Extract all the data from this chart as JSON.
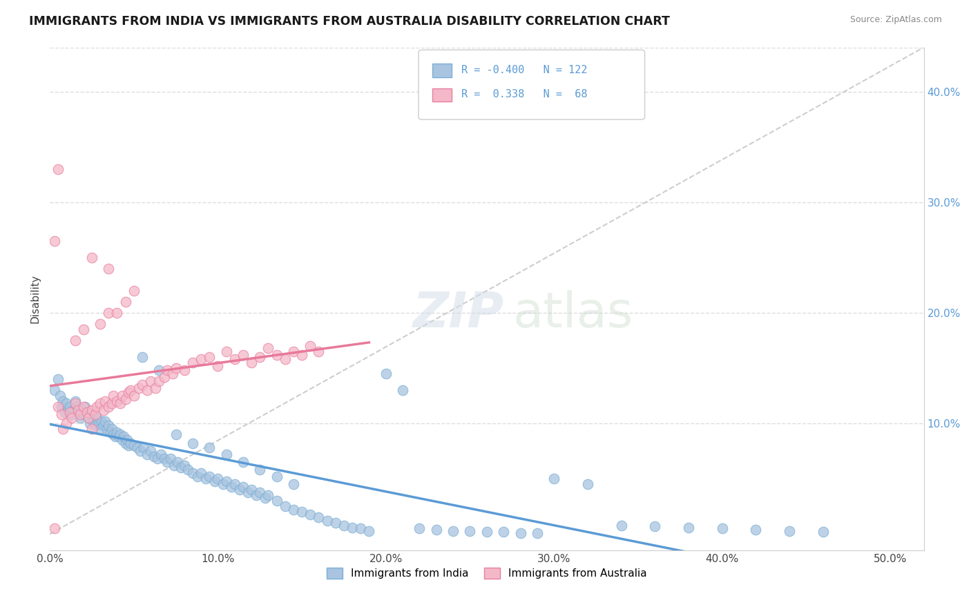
{
  "title": "IMMIGRANTS FROM INDIA VS IMMIGRANTS FROM AUSTRALIA DISABILITY CORRELATION CHART",
  "source": "Source: ZipAtlas.com",
  "ylabel": "Disability",
  "x_ticks": [
    0.0,
    0.1,
    0.2,
    0.3,
    0.4,
    0.5
  ],
  "x_tick_labels": [
    "0.0%",
    "10.0%",
    "20.0%",
    "30.0%",
    "40.0%",
    "50.0%"
  ],
  "y_ticks_right": [
    0.1,
    0.2,
    0.3,
    0.4
  ],
  "y_tick_labels_right": [
    "10.0%",
    "20.0%",
    "30.0%",
    "40.0%"
  ],
  "xlim": [
    0.0,
    0.52
  ],
  "ylim": [
    -0.015,
    0.44
  ],
  "india_color": "#a8c4e0",
  "india_color_dark": "#7bafd4",
  "australia_color": "#f4b8c8",
  "australia_color_dark": "#e87fa0",
  "trend_india_color": "#5b9bd5",
  "trend_australia_color": "#e8799a",
  "diagonal_color": "#c8c8c8",
  "legend_R_india": "-0.400",
  "legend_N_india": "122",
  "legend_R_australia": "0.338",
  "legend_N_australia": "68",
  "legend_label_india": "Immigrants from India",
  "legend_label_australia": "Immigrants from Australia",
  "india_x": [
    0.003,
    0.005,
    0.006,
    0.007,
    0.008,
    0.009,
    0.01,
    0.011,
    0.012,
    0.013,
    0.014,
    0.015,
    0.016,
    0.017,
    0.018,
    0.019,
    0.02,
    0.021,
    0.022,
    0.023,
    0.024,
    0.025,
    0.026,
    0.027,
    0.028,
    0.029,
    0.03,
    0.031,
    0.032,
    0.033,
    0.034,
    0.035,
    0.036,
    0.037,
    0.038,
    0.039,
    0.04,
    0.041,
    0.042,
    0.043,
    0.044,
    0.045,
    0.046,
    0.047,
    0.048,
    0.05,
    0.052,
    0.054,
    0.056,
    0.058,
    0.06,
    0.062,
    0.064,
    0.066,
    0.068,
    0.07,
    0.072,
    0.074,
    0.076,
    0.078,
    0.08,
    0.082,
    0.085,
    0.088,
    0.09,
    0.093,
    0.095,
    0.098,
    0.1,
    0.103,
    0.105,
    0.108,
    0.11,
    0.113,
    0.115,
    0.118,
    0.12,
    0.123,
    0.125,
    0.128,
    0.13,
    0.135,
    0.14,
    0.145,
    0.15,
    0.155,
    0.16,
    0.165,
    0.17,
    0.175,
    0.18,
    0.185,
    0.19,
    0.2,
    0.21,
    0.22,
    0.23,
    0.24,
    0.25,
    0.26,
    0.27,
    0.28,
    0.29,
    0.3,
    0.32,
    0.34,
    0.36,
    0.38,
    0.4,
    0.42,
    0.44,
    0.46,
    0.055,
    0.065,
    0.075,
    0.085,
    0.095,
    0.105,
    0.115,
    0.125,
    0.135,
    0.145
  ],
  "india_y": [
    0.13,
    0.14,
    0.125,
    0.115,
    0.12,
    0.11,
    0.118,
    0.112,
    0.115,
    0.108,
    0.112,
    0.12,
    0.115,
    0.11,
    0.105,
    0.112,
    0.108,
    0.115,
    0.11,
    0.105,
    0.1,
    0.108,
    0.102,
    0.098,
    0.105,
    0.1,
    0.095,
    0.102,
    0.098,
    0.102,
    0.095,
    0.098,
    0.092,
    0.095,
    0.09,
    0.088,
    0.092,
    0.088,
    0.09,
    0.085,
    0.088,
    0.082,
    0.085,
    0.08,
    0.082,
    0.08,
    0.078,
    0.075,
    0.078,
    0.072,
    0.075,
    0.07,
    0.068,
    0.072,
    0.068,
    0.065,
    0.068,
    0.062,
    0.065,
    0.06,
    0.062,
    0.058,
    0.055,
    0.052,
    0.055,
    0.05,
    0.052,
    0.048,
    0.05,
    0.045,
    0.048,
    0.043,
    0.045,
    0.04,
    0.043,
    0.038,
    0.04,
    0.035,
    0.038,
    0.033,
    0.035,
    0.03,
    0.025,
    0.022,
    0.02,
    0.018,
    0.015,
    0.012,
    0.01,
    0.008,
    0.006,
    0.005,
    0.003,
    0.145,
    0.13,
    0.005,
    0.004,
    0.003,
    0.003,
    0.002,
    0.002,
    0.001,
    0.001,
    0.05,
    0.045,
    0.008,
    0.007,
    0.006,
    0.005,
    0.004,
    0.003,
    0.002,
    0.16,
    0.148,
    0.09,
    0.082,
    0.078,
    0.072,
    0.065,
    0.058,
    0.052,
    0.045
  ],
  "australia_x": [
    0.003,
    0.005,
    0.007,
    0.008,
    0.01,
    0.012,
    0.013,
    0.015,
    0.017,
    0.018,
    0.02,
    0.022,
    0.023,
    0.025,
    0.027,
    0.028,
    0.03,
    0.032,
    0.033,
    0.035,
    0.037,
    0.038,
    0.04,
    0.042,
    0.043,
    0.045,
    0.047,
    0.048,
    0.05,
    0.053,
    0.055,
    0.058,
    0.06,
    0.063,
    0.065,
    0.068,
    0.07,
    0.073,
    0.075,
    0.08,
    0.085,
    0.09,
    0.095,
    0.1,
    0.105,
    0.11,
    0.115,
    0.12,
    0.125,
    0.13,
    0.135,
    0.14,
    0.145,
    0.15,
    0.155,
    0.16,
    0.015,
    0.02,
    0.025,
    0.03,
    0.035,
    0.04,
    0.045,
    0.05,
    0.003,
    0.025,
    0.035,
    0.005
  ],
  "australia_y": [
    0.005,
    0.115,
    0.108,
    0.095,
    0.1,
    0.11,
    0.105,
    0.118,
    0.112,
    0.108,
    0.115,
    0.11,
    0.105,
    0.112,
    0.108,
    0.115,
    0.118,
    0.112,
    0.12,
    0.115,
    0.118,
    0.125,
    0.12,
    0.118,
    0.125,
    0.122,
    0.128,
    0.13,
    0.125,
    0.132,
    0.135,
    0.13,
    0.138,
    0.132,
    0.138,
    0.142,
    0.148,
    0.145,
    0.15,
    0.148,
    0.155,
    0.158,
    0.16,
    0.152,
    0.165,
    0.158,
    0.162,
    0.155,
    0.16,
    0.168,
    0.162,
    0.158,
    0.165,
    0.162,
    0.17,
    0.165,
    0.175,
    0.185,
    0.095,
    0.19,
    0.2,
    0.2,
    0.21,
    0.22,
    0.265,
    0.25,
    0.24,
    0.33
  ]
}
